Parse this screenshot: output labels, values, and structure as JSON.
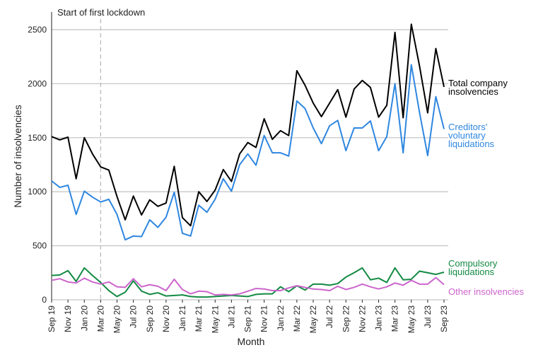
{
  "chart_data": {
    "type": "line",
    "categories": [
      "Sep 19",
      null,
      "Nov 19",
      null,
      "Jan 20",
      null,
      "Mar 20",
      null,
      "May 20",
      null,
      "Jul 20",
      null,
      "Sep 20",
      null,
      "Nov 20",
      null,
      "Jan 21",
      null,
      "Mar 21",
      null,
      "May 21",
      null,
      "Jul 21",
      null,
      "Sep 21",
      null,
      "Nov 21",
      null,
      "Jan 22",
      null,
      "Mar 22",
      null,
      "May 22",
      null,
      "Jul 22",
      null,
      "Sep 22",
      null,
      "Nov 22",
      null,
      "Jan 23",
      null,
      "Mar 23",
      null,
      "May 23",
      null,
      "Jul 23",
      null,
      "Sep 23"
    ],
    "x_label": "Month",
    "y_label": "Number of insolvencies",
    "ylim": [
      0,
      2650
    ],
    "yticks": [
      0,
      500,
      1000,
      1500,
      2000,
      2500
    ],
    "grid": true,
    "annotation": {
      "text": "Start of first lockdown",
      "at": "Mar 20"
    },
    "series": [
      {
        "name": "Total company insolvencies",
        "color": "#000000",
        "values": [
          1510,
          1480,
          1505,
          1120,
          1500,
          1350,
          1230,
          1200,
          955,
          740,
          960,
          785,
          925,
          865,
          895,
          1235,
          760,
          685,
          1000,
          910,
          1015,
          1205,
          1095,
          1350,
          1455,
          1410,
          1675,
          1485,
          1565,
          1520,
          2120,
          1985,
          1820,
          1695,
          1820,
          1945,
          1690,
          1950,
          2030,
          1965,
          1690,
          1800,
          2475,
          1685,
          2550,
          2165,
          1730,
          2325,
          1970
        ]
      },
      {
        "name": "Creditors' voluntary liquidations",
        "color": "#2f87e0",
        "values": [
          1100,
          1040,
          1060,
          790,
          1005,
          950,
          905,
          930,
          790,
          555,
          590,
          585,
          740,
          670,
          765,
          995,
          615,
          590,
          875,
          810,
          930,
          1120,
          1005,
          1250,
          1350,
          1245,
          1520,
          1360,
          1360,
          1330,
          1840,
          1770,
          1590,
          1445,
          1610,
          1660,
          1380,
          1590,
          1590,
          1655,
          1380,
          1510,
          2000,
          1360,
          2175,
          1735,
          1335,
          1880,
          1580
        ]
      },
      {
        "name": "Compulsory liquidations",
        "color": "#138a43",
        "values": [
          225,
          230,
          270,
          170,
          295,
          225,
          160,
          85,
          30,
          70,
          175,
          80,
          50,
          65,
          35,
          40,
          45,
          30,
          25,
          25,
          30,
          35,
          40,
          35,
          30,
          50,
          55,
          55,
          120,
          75,
          130,
          90,
          145,
          145,
          135,
          150,
          210,
          250,
          295,
          185,
          200,
          160,
          295,
          185,
          190,
          265,
          250,
          235,
          255
        ]
      },
      {
        "name": "Other insolvencies",
        "color": "#cc66cc",
        "values": [
          180,
          195,
          165,
          155,
          200,
          165,
          145,
          165,
          120,
          115,
          195,
          120,
          140,
          125,
          85,
          190,
          95,
          55,
          80,
          75,
          45,
          50,
          45,
          55,
          80,
          105,
          100,
          85,
          85,
          110,
          130,
          115,
          100,
          95,
          85,
          125,
          95,
          115,
          145,
          120,
          100,
          120,
          155,
          135,
          180,
          145,
          145,
          205,
          140
        ]
      }
    ]
  }
}
